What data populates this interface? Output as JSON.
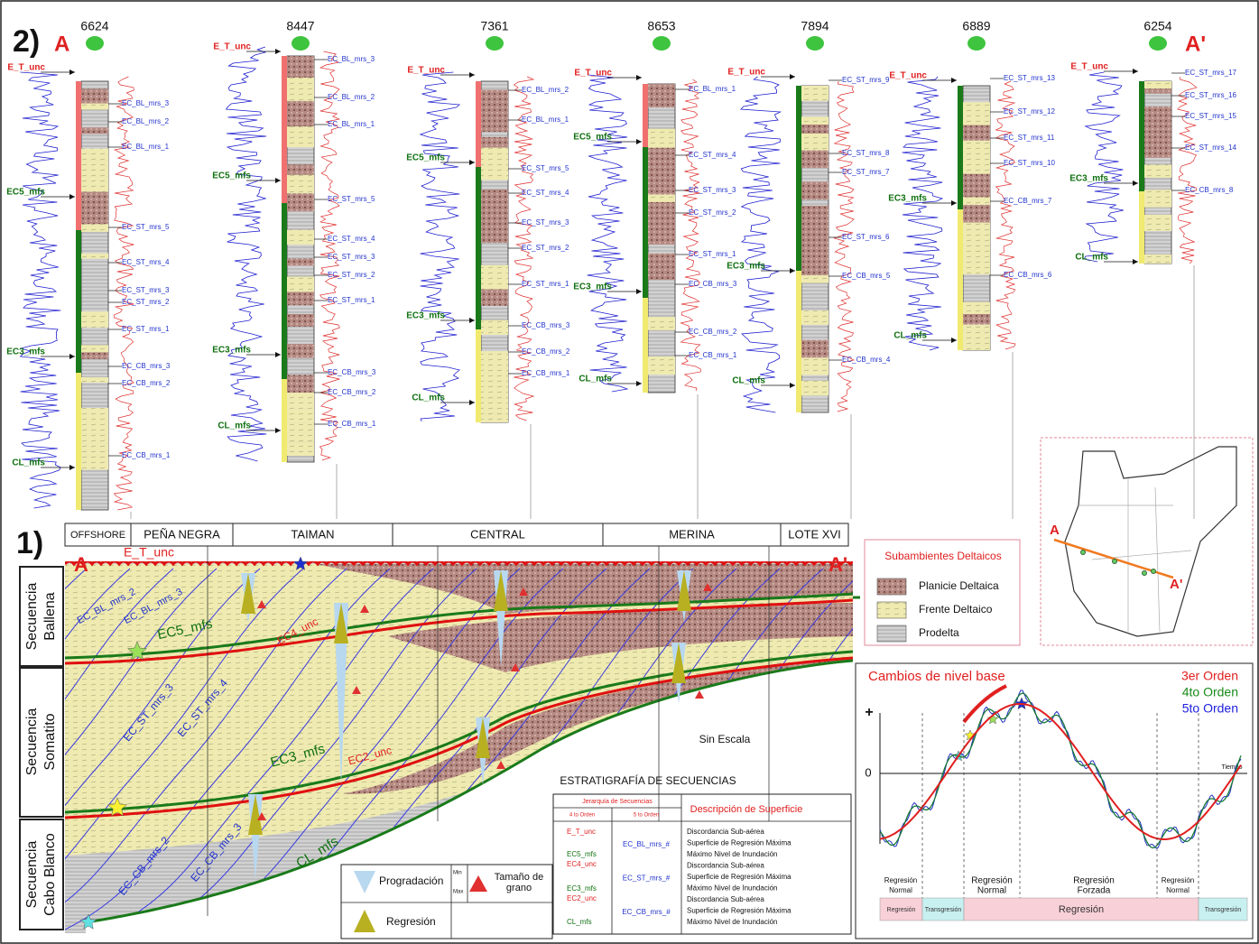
{
  "panel2": {
    "label": "2)",
    "start": "A",
    "end": "A'",
    "wells": [
      {
        "name": "6624",
        "left": [
          "E_T_unc",
          "EC5_mfs",
          "EC3_mfs",
          "CL_mfs"
        ],
        "right": [
          "EC_BL_mrs_3",
          "EC_BL_mrs_2",
          "EC_BL_mrs_1",
          "EC_ST_mrs_5",
          "EC_ST_mrs_4",
          "EC_ST_mrs_3",
          "EC_ST_mrs_2",
          "EC_ST_mrs_1",
          "EC_CB_mrs_3",
          "EC_CB_mrs_2",
          "EC_CB_mrs_1"
        ]
      },
      {
        "name": "8447",
        "left": [
          "E_T_unc",
          "EC5_mfs",
          "EC3_mfs",
          "CL_mfs"
        ],
        "right": [
          "EC_BL_mrs_3",
          "EC_BL_mrs_2",
          "EC_BL_mrs_1",
          "EC_ST_mrs_5",
          "EC_ST_mrs_4",
          "EC_ST_mrs_3",
          "EC_ST_mrs_2",
          "EC_ST_mrs_1",
          "EC_CB_mrs_3",
          "EC_CB_mrs_2",
          "EC_CB_mrs_1"
        ]
      },
      {
        "name": "7361",
        "left": [
          "E_T_unc",
          "EC5_mfs",
          "EC3_mfs",
          "CL_mfs"
        ],
        "right": [
          "EC_BL_mrs_2",
          "EC_BL_mrs_1",
          "EC_ST_mrs_5",
          "EC_ST_mrs_4",
          "EC_ST_mrs_3",
          "EC_ST_mrs_2",
          "EC_ST_mrs_1",
          "EC_CB_mrs_3",
          "EC_CB_mrs_2",
          "EC_CB_mrs_1"
        ]
      },
      {
        "name": "8653",
        "left": [
          "E_T_unc",
          "EC5_mfs",
          "EC3_mfs",
          "CL_mfs"
        ],
        "right": [
          "EC_BL_mrs_1",
          "EC_ST_mrs_4",
          "EC_ST_mrs_3",
          "EC_ST_mrs_2",
          "EC_ST_mrs_1",
          "EC_CB_mrs_3",
          "EC_CB_mrs_2",
          "EC_CB_mrs_1"
        ]
      },
      {
        "name": "7894",
        "left": [
          "E_T_unc",
          "EC3_mfs",
          "CL_mfs"
        ],
        "right": [
          "EC_ST_mrs_9",
          "EC_ST_mrs_8",
          "EC_ST_mrs_7",
          "EC_ST_mrs_6",
          "EC_CB_mrs_5",
          "EC_CB_mrs_4"
        ]
      },
      {
        "name": "6889",
        "left": [
          "E_T_unc",
          "EC3_mfs",
          "CL_mfs"
        ],
        "right": [
          "EC_ST_mrs_13",
          "EC_ST_mrs_12",
          "EC_ST_mrs_11",
          "EC_ST_mrs_10",
          "EC_CB_mrs_7",
          "EC_CB_mrs_6"
        ]
      },
      {
        "name": "6254",
        "left": [
          "E_T_unc",
          "EC3_mfs",
          "CL_mfs"
        ],
        "right": [
          "EC_ST_mrs_17",
          "EC_ST_mrs_16",
          "EC_ST_mrs_15",
          "EC_ST_mrs_14",
          "EC_CB_mrs_8"
        ]
      }
    ]
  },
  "panel1": {
    "label": "1)",
    "start": "A",
    "end": "A'",
    "zones": [
      "OFFSHORE",
      "PEÑA NEGRA",
      "TAIMAN",
      "CENTRAL",
      "MERINA",
      "LOTE XVI"
    ],
    "sequences": [
      {
        "lines": [
          "Secuencia",
          "Ballena"
        ]
      },
      {
        "lines": [
          "Secuencia",
          "Somatito"
        ]
      },
      {
        "lines": [
          "Secuencia",
          "Cabo Blanco"
        ]
      }
    ],
    "surfaces": [
      "E_T_unc",
      "EC5_mfs",
      "EC4_unc",
      "EC_BL_mrs_2",
      "EC_BL_mrs_3",
      "EC_ST_mrs_3",
      "EC_ST_mrs_4",
      "EC3_mfs",
      "EC2_unc",
      "EC_CB_mrs_2",
      "EC_CB_mrs_3",
      "CL_mfs"
    ],
    "note": "Sin Escala"
  },
  "legend": {
    "title": "Subambientes Deltaicos",
    "items": [
      "Planicie Deltaica",
      "Frente Deltaico",
      "Prodelta"
    ]
  },
  "map": {
    "start": "A",
    "end": "A'"
  },
  "base_level": {
    "title": "Cambios de nivel base",
    "orders": [
      "3er Orden",
      "4to Orden",
      "5to Orden"
    ],
    "plus": "+",
    "zero": "0",
    "time": "Tiempo",
    "phases": [
      {
        "lines": [
          "Regresión",
          "Normal"
        ]
      },
      {
        "lines": [
          "Regresión",
          "Normal"
        ]
      },
      {
        "lines": [
          "Regresión",
          "Forzada"
        ]
      },
      {
        "lines": [
          "Regresión",
          "Normal"
        ]
      }
    ],
    "stages": [
      "Regresión",
      "Transgresión",
      "Regresión",
      "Transgresión"
    ]
  },
  "stratigraphy": {
    "title": "ESTRATIGRAFÍA DE SECUENCIAS",
    "header": "Jerarquía de Secuencias",
    "order4": "4 to Orden",
    "order5": "5 to Orden",
    "description": "Descripción de Superficie",
    "surfaces4": [
      "E_T_unc",
      "EC5_mfs",
      "EC4_unc",
      "EC3_mfs",
      "EC2_unc",
      "CL_mfs"
    ],
    "surfaces5": [
      "EC_BL_mrs_#",
      "EC_ST_mrs_#",
      "EC_CB_mrs_#"
    ],
    "descriptions": [
      "Discordancia Sub-aérea",
      "Superficie de Regresión Máxima",
      "Máximo Nivel de Inundación",
      "Discordancia Sub-aérea",
      "Superficie de Regresión Máxima",
      "Máximo Nivel de Inundación",
      "Discordancia Sub-aérea",
      "Superficie de Regresión Máxima",
      "Máximo Nivel de Inundación"
    ]
  },
  "grain_legend": {
    "progradation": "Progradación",
    "regression": "Regresión",
    "min": "Min",
    "max": "Max",
    "grain_size": [
      "Tamaño de",
      "grano"
    ]
  }
}
